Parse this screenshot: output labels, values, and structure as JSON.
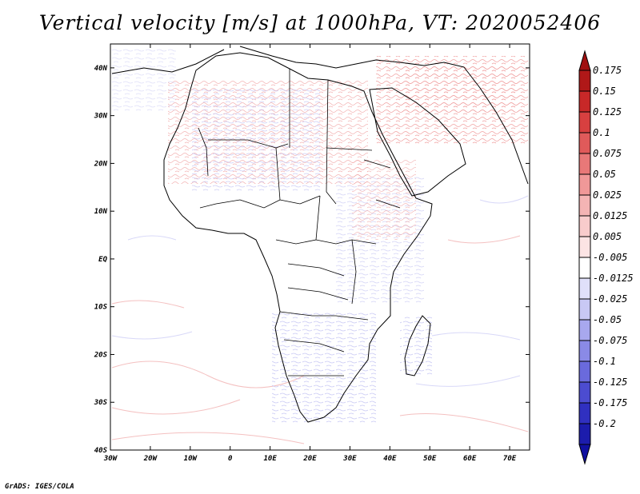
{
  "title": "Vertical velocity [m/s] at 1000hPa, VT: 2020052406",
  "footer": "GrADS: IGES/COLA",
  "map": {
    "lon_range": [
      -30,
      75
    ],
    "lat_range": [
      -40,
      45
    ],
    "lat_ticks": [
      {
        "value": 40,
        "label": "40N"
      },
      {
        "value": 30,
        "label": "30N"
      },
      {
        "value": 20,
        "label": "20N"
      },
      {
        "value": 10,
        "label": "10N"
      },
      {
        "value": 0,
        "label": "EQ"
      },
      {
        "value": -10,
        "label": "10S"
      },
      {
        "value": -20,
        "label": "20S"
      },
      {
        "value": -30,
        "label": "30S"
      },
      {
        "value": -40,
        "label": "40S"
      }
    ],
    "lon_ticks": [
      {
        "value": -30,
        "label": "30W"
      },
      {
        "value": -20,
        "label": "20W"
      },
      {
        "value": -10,
        "label": "10W"
      },
      {
        "value": 0,
        "label": "0"
      },
      {
        "value": 10,
        "label": "10E"
      },
      {
        "value": 20,
        "label": "20E"
      },
      {
        "value": 30,
        "label": "30E"
      },
      {
        "value": 40,
        "label": "40E"
      },
      {
        "value": 50,
        "label": "50E"
      },
      {
        "value": 60,
        "label": "60E"
      },
      {
        "value": 70,
        "label": "70E"
      }
    ]
  },
  "colorbar": {
    "entries": [
      {
        "label": "0.175",
        "color": "#b01818"
      },
      {
        "label": "0.15",
        "color": "#c82828"
      },
      {
        "label": "0.125",
        "color": "#d84040"
      },
      {
        "label": "0.1",
        "color": "#e05a5a"
      },
      {
        "label": "0.075",
        "color": "#e87878"
      },
      {
        "label": "0.05",
        "color": "#f09898"
      },
      {
        "label": "0.025",
        "color": "#f4b4b4"
      },
      {
        "label": "0.0125",
        "color": "#f8cccc"
      },
      {
        "label": "0.005",
        "color": "#fce4e4"
      },
      {
        "label": "-0.005",
        "color": "#ffffff"
      },
      {
        "label": "-0.0125",
        "color": "#e0e0fa"
      },
      {
        "label": "-0.025",
        "color": "#c8c8f4"
      },
      {
        "label": "-0.05",
        "color": "#a8a8ee"
      },
      {
        "label": "-0.075",
        "color": "#8a8ae6"
      },
      {
        "label": "-0.1",
        "color": "#6a6adc"
      },
      {
        "label": "-0.125",
        "color": "#4c4cd0"
      },
      {
        "label": "-0.175",
        "color": "#3030c0"
      },
      {
        "label": "-0.2",
        "color": "#1c1cac"
      }
    ],
    "top_cap_color": "#a01010",
    "bottom_cap_color": "#1010a0"
  }
}
